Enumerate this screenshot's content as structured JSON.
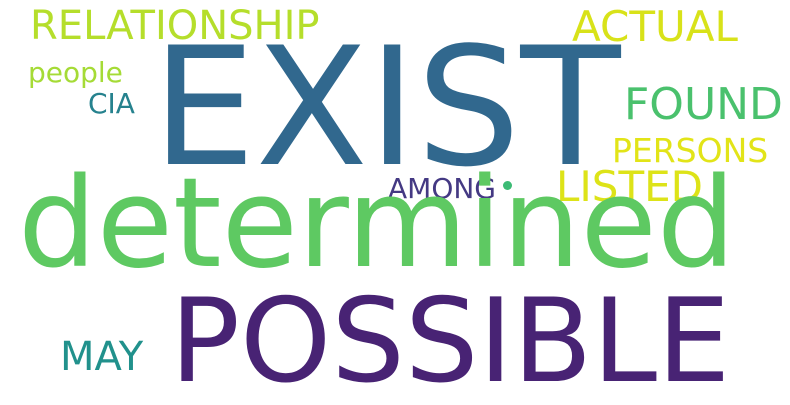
{
  "words": {
    "exist": {
      "text": "EXIST",
      "color": "#31688e"
    },
    "determined": {
      "text": "determined",
      "color": "#5ec962"
    },
    "possible": {
      "text": "POSSIBLE",
      "color": "#482374"
    },
    "relationship": {
      "text": "RELATIONSHIP",
      "color": "#b5de2b"
    },
    "actual": {
      "text": "ACTUAL",
      "color": "#d8e219"
    },
    "people": {
      "text": "people",
      "color": "#a5db36"
    },
    "cia": {
      "text": "CIA",
      "color": "#26828e"
    },
    "found": {
      "text": "FOUND",
      "color": "#4ac16d"
    },
    "persons": {
      "text": "PERSONS",
      "color": "#e2e418"
    },
    "listed": {
      "text": "LISTED",
      "color": "#dde318"
    },
    "among": {
      "text": "AMONG",
      "color": "#443983"
    },
    "may": {
      "text": "MAY",
      "color": "#21918c"
    }
  },
  "decor": {
    "dot_color": "#3cbb75"
  }
}
